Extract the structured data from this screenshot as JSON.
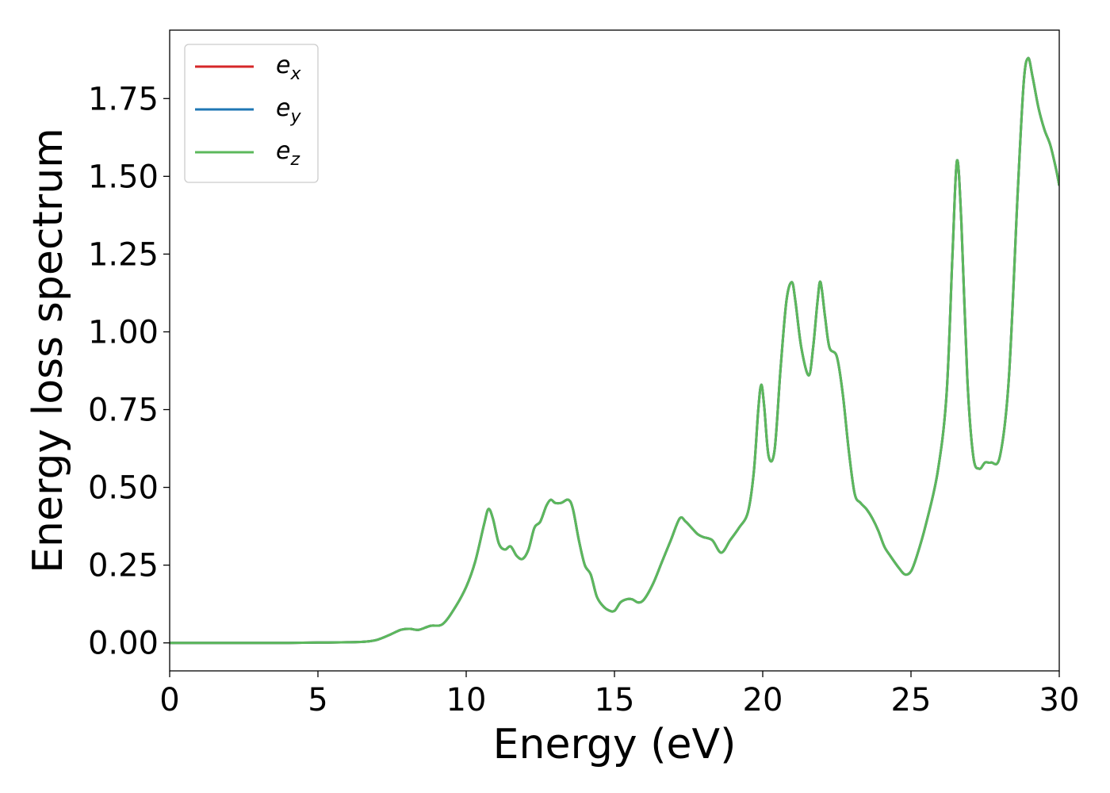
{
  "chart_data": {
    "type": "line",
    "xlabel": "Energy (eV)",
    "ylabel": "Energy loss spectrum",
    "xlim": [
      0,
      30
    ],
    "ylim": [
      -0.09,
      1.97
    ],
    "xticks": [
      0,
      5,
      10,
      15,
      20,
      25,
      30
    ],
    "xtick_labels": [
      "0",
      "5",
      "10",
      "15",
      "20",
      "25",
      "30"
    ],
    "yticks": [
      0.0,
      0.25,
      0.5,
      0.75,
      1.0,
      1.25,
      1.5,
      1.75
    ],
    "ytick_labels": [
      "0.00",
      "0.25",
      "0.50",
      "0.75",
      "1.00",
      "1.25",
      "1.50",
      "1.75"
    ],
    "grid": false,
    "legend_position": "top-left",
    "x": [
      0,
      1,
      2,
      3,
      4,
      5,
      6,
      6.6,
      7.0,
      7.4,
      7.8,
      8.1,
      8.4,
      8.8,
      9.2,
      9.6,
      10.0,
      10.3,
      10.6,
      10.75,
      10.9,
      11.1,
      11.3,
      11.5,
      11.7,
      11.9,
      12.1,
      12.3,
      12.5,
      12.7,
      12.85,
      13.0,
      13.2,
      13.45,
      13.6,
      13.8,
      14.0,
      14.2,
      14.4,
      14.6,
      14.8,
      15.0,
      15.2,
      15.4,
      15.6,
      15.8,
      16.0,
      16.3,
      16.6,
      16.9,
      17.2,
      17.4,
      17.6,
      17.8,
      18.0,
      18.3,
      18.6,
      18.9,
      19.2,
      19.5,
      19.7,
      19.85,
      19.95,
      20.05,
      20.2,
      20.4,
      20.6,
      20.8,
      20.98,
      21.1,
      21.3,
      21.55,
      21.7,
      21.85,
      21.95,
      22.1,
      22.25,
      22.5,
      22.7,
      22.9,
      23.1,
      23.3,
      23.5,
      23.7,
      23.9,
      24.1,
      24.3,
      24.6,
      24.8,
      25.0,
      25.2,
      25.5,
      25.9,
      26.2,
      26.4,
      26.55,
      26.7,
      26.9,
      27.1,
      27.3,
      27.5,
      27.7,
      28.0,
      28.3,
      28.6,
      28.8,
      28.95,
      29.1,
      29.3,
      29.5,
      29.7,
      29.9,
      30.0
    ],
    "series": [
      {
        "name": "e_x",
        "color": "#d62728",
        "y": [
          0.0,
          0.0,
          0.0,
          0.0,
          0.0,
          0.001,
          0.002,
          0.004,
          0.01,
          0.025,
          0.042,
          0.045,
          0.042,
          0.055,
          0.06,
          0.11,
          0.18,
          0.26,
          0.38,
          0.43,
          0.4,
          0.32,
          0.3,
          0.31,
          0.28,
          0.27,
          0.3,
          0.37,
          0.39,
          0.44,
          0.46,
          0.45,
          0.45,
          0.46,
          0.43,
          0.33,
          0.25,
          0.22,
          0.15,
          0.12,
          0.105,
          0.103,
          0.13,
          0.14,
          0.14,
          0.13,
          0.14,
          0.19,
          0.26,
          0.33,
          0.4,
          0.39,
          0.37,
          0.35,
          0.34,
          0.33,
          0.29,
          0.33,
          0.37,
          0.42,
          0.55,
          0.75,
          0.83,
          0.76,
          0.6,
          0.62,
          0.88,
          1.1,
          1.16,
          1.1,
          0.95,
          0.86,
          0.95,
          1.1,
          1.16,
          1.05,
          0.95,
          0.92,
          0.8,
          0.62,
          0.48,
          0.45,
          0.43,
          0.4,
          0.36,
          0.31,
          0.28,
          0.24,
          0.22,
          0.23,
          0.28,
          0.38,
          0.55,
          0.8,
          1.25,
          1.55,
          1.35,
          0.85,
          0.6,
          0.56,
          0.58,
          0.58,
          0.6,
          0.85,
          1.45,
          1.8,
          1.88,
          1.82,
          1.72,
          1.65,
          1.6,
          1.52,
          1.47
        ]
      },
      {
        "name": "e_y",
        "color": "#1f77b4",
        "y": [
          0.0,
          0.0,
          0.0,
          0.0,
          0.0,
          0.001,
          0.002,
          0.004,
          0.01,
          0.025,
          0.042,
          0.045,
          0.042,
          0.055,
          0.06,
          0.11,
          0.18,
          0.26,
          0.38,
          0.43,
          0.4,
          0.32,
          0.3,
          0.31,
          0.28,
          0.27,
          0.3,
          0.37,
          0.39,
          0.44,
          0.46,
          0.45,
          0.45,
          0.46,
          0.43,
          0.33,
          0.25,
          0.22,
          0.15,
          0.12,
          0.105,
          0.103,
          0.13,
          0.14,
          0.14,
          0.13,
          0.14,
          0.19,
          0.26,
          0.33,
          0.4,
          0.39,
          0.37,
          0.35,
          0.34,
          0.33,
          0.29,
          0.33,
          0.37,
          0.42,
          0.55,
          0.75,
          0.83,
          0.76,
          0.6,
          0.62,
          0.88,
          1.1,
          1.16,
          1.1,
          0.95,
          0.86,
          0.95,
          1.1,
          1.16,
          1.05,
          0.95,
          0.92,
          0.8,
          0.62,
          0.48,
          0.45,
          0.43,
          0.4,
          0.36,
          0.31,
          0.28,
          0.24,
          0.22,
          0.23,
          0.28,
          0.38,
          0.55,
          0.8,
          1.25,
          1.55,
          1.35,
          0.85,
          0.6,
          0.56,
          0.58,
          0.58,
          0.6,
          0.85,
          1.45,
          1.8,
          1.88,
          1.82,
          1.72,
          1.65,
          1.6,
          1.52,
          1.47
        ]
      },
      {
        "name": "e_z",
        "color": "#5cb85c",
        "y": [
          0.0,
          0.0,
          0.0,
          0.0,
          0.0,
          0.001,
          0.002,
          0.004,
          0.01,
          0.025,
          0.042,
          0.045,
          0.042,
          0.055,
          0.06,
          0.11,
          0.18,
          0.26,
          0.38,
          0.43,
          0.4,
          0.32,
          0.3,
          0.31,
          0.28,
          0.27,
          0.3,
          0.37,
          0.39,
          0.44,
          0.46,
          0.45,
          0.45,
          0.46,
          0.43,
          0.33,
          0.25,
          0.22,
          0.15,
          0.12,
          0.105,
          0.103,
          0.13,
          0.14,
          0.14,
          0.13,
          0.14,
          0.19,
          0.26,
          0.33,
          0.4,
          0.39,
          0.37,
          0.35,
          0.34,
          0.33,
          0.29,
          0.33,
          0.37,
          0.42,
          0.55,
          0.75,
          0.83,
          0.76,
          0.6,
          0.62,
          0.88,
          1.1,
          1.16,
          1.1,
          0.95,
          0.86,
          0.95,
          1.1,
          1.16,
          1.05,
          0.95,
          0.92,
          0.8,
          0.62,
          0.48,
          0.45,
          0.43,
          0.4,
          0.36,
          0.31,
          0.28,
          0.24,
          0.22,
          0.23,
          0.28,
          0.38,
          0.55,
          0.8,
          1.25,
          1.55,
          1.35,
          0.85,
          0.6,
          0.56,
          0.58,
          0.58,
          0.6,
          0.85,
          1.45,
          1.8,
          1.88,
          1.82,
          1.72,
          1.65,
          1.6,
          1.52,
          1.47
        ]
      }
    ],
    "legend": [
      {
        "base": "e",
        "sub": "x",
        "color": "#d62728"
      },
      {
        "base": "e",
        "sub": "y",
        "color": "#1f77b4"
      },
      {
        "base": "e",
        "sub": "z",
        "color": "#5cb85c"
      }
    ]
  }
}
